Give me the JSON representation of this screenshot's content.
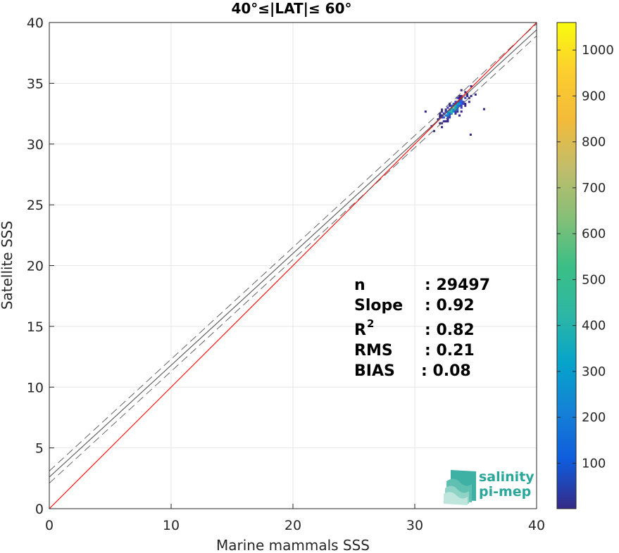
{
  "chart_data": {
    "type": "heatmap",
    "title": "40°≤|LAT|≤ 60°",
    "xlabel": "Marine mammals SSS",
    "ylabel": "Satellite SSS",
    "xlim": [
      0,
      40
    ],
    "ylim": [
      0,
      40
    ],
    "xticks": [
      "0",
      "10",
      "20",
      "30",
      "40"
    ],
    "yticks": [
      "0",
      "5",
      "10",
      "15",
      "20",
      "25",
      "30",
      "35",
      "40"
    ],
    "grid": true,
    "colorbar": {
      "range": [
        1,
        1060
      ],
      "ticks": [
        "100",
        "200",
        "300",
        "400",
        "500",
        "600",
        "700",
        "800",
        "900",
        "1000"
      ],
      "colormap": "parula"
    },
    "density_cluster": {
      "x_range": [
        31.5,
        34.8
      ],
      "y_range": [
        31.0,
        34.8
      ],
      "peak_count": 1060
    },
    "lines": [
      {
        "name": "one-to-one",
        "color": "#ff0000",
        "style": "solid",
        "slope": 1.0,
        "intercept": 0.0
      },
      {
        "name": "regression",
        "color": "#555555",
        "style": "solid",
        "slope": 0.92,
        "intercept": 2.6
      },
      {
        "name": "regression-upper",
        "color": "#555555",
        "style": "dashed",
        "slope": 0.92,
        "intercept": 3.1
      },
      {
        "name": "regression-lower",
        "color": "#555555",
        "style": "dashed",
        "slope": 0.92,
        "intercept": 2.1
      }
    ],
    "stats": {
      "n_label": "n",
      "n_value": ": 29497",
      "slope_label": "Slope",
      "slope_value": ": 0.92",
      "r2_label": "R",
      "r2_sup": "2",
      "r2_value": ": 0.82",
      "rms_label": "RMS",
      "rms_value": ": 0.21",
      "bias_label": "BIAS",
      "bias_value": ": 0.08"
    }
  },
  "logo": {
    "line1": "salinity",
    "line2": "pi-mep",
    "color": "#2aa79a"
  }
}
